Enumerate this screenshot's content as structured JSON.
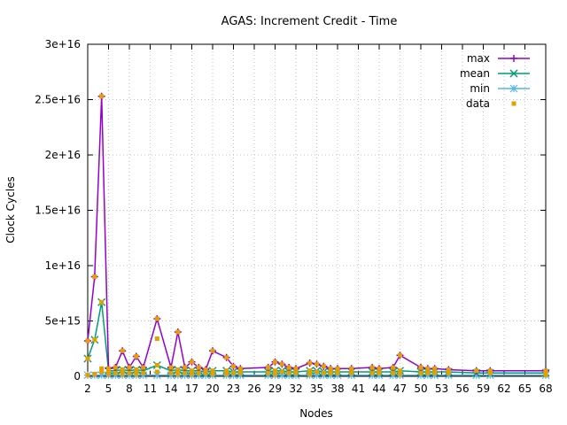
{
  "chart_data": {
    "type": "line",
    "title": "AGAS: Increment Credit - Time",
    "xlabel": "Nodes",
    "ylabel": "Clock Cycles",
    "xlim": [
      2,
      68
    ],
    "ylim": [
      0,
      3e+16
    ],
    "x_ticks": [
      2,
      5,
      8,
      11,
      14,
      17,
      20,
      23,
      26,
      29,
      32,
      35,
      38,
      41,
      44,
      47,
      50,
      53,
      56,
      59,
      62,
      65,
      68
    ],
    "y_ticks": [
      {
        "value": 0,
        "label": "0"
      },
      {
        "value": 5000000000000000.0,
        "label": "5e+15"
      },
      {
        "value": 1e+16,
        "label": "1e+16"
      },
      {
        "value": 1.5e+16,
        "label": "1.5e+16"
      },
      {
        "value": 2e+16,
        "label": "2e+16"
      },
      {
        "value": 2.5e+16,
        "label": "2.5e+16"
      },
      {
        "value": 3e+16,
        "label": "3e+16"
      }
    ],
    "grid": true,
    "legend_position": "top-right",
    "series": [
      {
        "name": "max",
        "color": "#9400d3",
        "marker": "plus",
        "x": [
          2,
          3,
          4,
          5,
          6,
          7,
          8,
          9,
          10,
          12,
          14,
          15,
          16,
          17,
          18,
          19,
          20,
          22,
          23,
          24,
          28,
          29,
          30,
          31,
          32,
          34,
          35,
          36,
          37,
          38,
          40,
          43,
          44,
          46,
          47,
          50,
          51,
          52,
          54,
          58,
          60,
          68
        ],
        "y": [
          3200000000000000.0,
          9000000000000000.0,
          2.53e+16,
          700000000000000.0,
          800000000000000.0,
          2300000000000000.0,
          800000000000000.0,
          1800000000000000.0,
          800000000000000.0,
          5200000000000000.0,
          800000000000000.0,
          4000000000000000.0,
          800000000000000.0,
          1300000000000000.0,
          800000000000000.0,
          600000000000000.0,
          2300000000000000.0,
          1700000000000000.0,
          900000000000000.0,
          700000000000000.0,
          800000000000000.0,
          1300000000000000.0,
          1100000000000000.0,
          800000000000000.0,
          700000000000000.0,
          1200000000000000.0,
          1100000000000000.0,
          900000000000000.0,
          700000000000000.0,
          700000000000000.0,
          700000000000000.0,
          800000000000000.0,
          700000000000000.0,
          800000000000000.0,
          1900000000000000.0,
          800000000000000.0,
          700000000000000.0,
          700000000000000.0,
          600000000000000.0,
          500000000000000.0,
          500000000000000.0,
          500000000000000.0
        ]
      },
      {
        "name": "mean",
        "color": "#009e73",
        "marker": "cross",
        "x": [
          2,
          3,
          4,
          5,
          6,
          7,
          8,
          9,
          10,
          12,
          14,
          15,
          16,
          17,
          18,
          19,
          20,
          22,
          23,
          24,
          28,
          29,
          30,
          31,
          32,
          34,
          35,
          36,
          37,
          38,
          40,
          43,
          44,
          46,
          47,
          50,
          51,
          52,
          54,
          58,
          60,
          68
        ],
        "y": [
          1600000000000000.0,
          3300000000000000.0,
          6700000000000000.0,
          500000000000000.0,
          500000000000000.0,
          600000000000000.0,
          500000000000000.0,
          600000000000000.0,
          500000000000000.0,
          1000000000000000.0,
          500000000000000.0,
          600000000000000.0,
          500000000000000.0,
          500000000000000.0,
          500000000000000.0,
          400000000000000.0,
          500000000000000.0,
          500000000000000.0,
          400000000000000.0,
          400000000000000.0,
          400000000000000.0,
          500000000000000.0,
          500000000000000.0,
          400000000000000.0,
          400000000000000.0,
          500000000000000.0,
          500000000000000.0,
          400000000000000.0,
          400000000000000.0,
          400000000000000.0,
          400000000000000.0,
          400000000000000.0,
          400000000000000.0,
          400000000000000.0,
          500000000000000.0,
          400000000000000.0,
          400000000000000.0,
          400000000000000.0,
          400000000000000.0,
          300000000000000.0,
          300000000000000.0,
          300000000000000.0
        ]
      },
      {
        "name": "min",
        "color": "#56b4e9",
        "marker": "star",
        "x": [
          2,
          3,
          4,
          5,
          6,
          7,
          8,
          9,
          10,
          12,
          14,
          15,
          16,
          17,
          18,
          19,
          20,
          22,
          23,
          24,
          28,
          29,
          30,
          31,
          32,
          34,
          35,
          36,
          37,
          38,
          40,
          43,
          44,
          46,
          47,
          50,
          51,
          52,
          54,
          58,
          60,
          68
        ],
        "y": [
          100000000000000.0,
          100000000000000.0,
          100000000000000.0,
          100000000000000.0,
          100000000000000.0,
          100000000000000.0,
          100000000000000.0,
          100000000000000.0,
          100000000000000.0,
          100000000000000.0,
          100000000000000.0,
          100000000000000.0,
          100000000000000.0,
          100000000000000.0,
          100000000000000.0,
          100000000000000.0,
          100000000000000.0,
          100000000000000.0,
          100000000000000.0,
          100000000000000.0,
          100000000000000.0,
          100000000000000.0,
          100000000000000.0,
          100000000000000.0,
          100000000000000.0,
          100000000000000.0,
          100000000000000.0,
          100000000000000.0,
          100000000000000.0,
          100000000000000.0,
          100000000000000.0,
          100000000000000.0,
          100000000000000.0,
          100000000000000.0,
          100000000000000.0,
          100000000000000.0,
          100000000000000.0,
          100000000000000.0,
          100000000000000.0,
          100000000000000.0,
          100000000000000.0,
          100000000000000.0
        ]
      },
      {
        "name": "data",
        "color": "#e69f00",
        "marker": "square",
        "points": [
          [
            2,
            3200000000000000.0
          ],
          [
            2,
            1600000000000000.0
          ],
          [
            2,
            100000000000000.0
          ],
          [
            3,
            9000000000000000.0
          ],
          [
            3,
            3300000000000000.0
          ],
          [
            3,
            200000000000000.0
          ],
          [
            4,
            2.53e+16
          ],
          [
            4,
            6700000000000000.0
          ],
          [
            4,
            700000000000000.0
          ],
          [
            4,
            400000000000000.0
          ],
          [
            5,
            700000000000000.0
          ],
          [
            5,
            400000000000000.0
          ],
          [
            5,
            200000000000000.0
          ],
          [
            6,
            800000000000000.0
          ],
          [
            6,
            300000000000000.0
          ],
          [
            7,
            2300000000000000.0
          ],
          [
            7,
            600000000000000.0
          ],
          [
            7,
            200000000000000.0
          ],
          [
            8,
            800000000000000.0
          ],
          [
            8,
            300000000000000.0
          ],
          [
            9,
            1800000000000000.0
          ],
          [
            9,
            600000000000000.0
          ],
          [
            9,
            200000000000000.0
          ],
          [
            10,
            800000000000000.0
          ],
          [
            10,
            300000000000000.0
          ],
          [
            12,
            5200000000000000.0
          ],
          [
            12,
            3400000000000000.0
          ],
          [
            12,
            1000000000000000.0
          ],
          [
            12,
            400000000000000.0
          ],
          [
            14,
            800000000000000.0
          ],
          [
            14,
            300000000000000.0
          ],
          [
            15,
            4000000000000000.0
          ],
          [
            15,
            600000000000000.0
          ],
          [
            15,
            200000000000000.0
          ],
          [
            16,
            800000000000000.0
          ],
          [
            16,
            300000000000000.0
          ],
          [
            17,
            1300000000000000.0
          ],
          [
            17,
            500000000000000.0
          ],
          [
            17,
            200000000000000.0
          ],
          [
            18,
            800000000000000.0
          ],
          [
            18,
            300000000000000.0
          ],
          [
            19,
            600000000000000.0
          ],
          [
            19,
            300000000000000.0
          ],
          [
            20,
            2300000000000000.0
          ],
          [
            20,
            500000000000000.0
          ],
          [
            20,
            200000000000000.0
          ],
          [
            22,
            1700000000000000.0
          ],
          [
            22,
            500000000000000.0
          ],
          [
            22,
            200000000000000.0
          ],
          [
            23,
            900000000000000.0
          ],
          [
            23,
            300000000000000.0
          ],
          [
            24,
            700000000000000.0
          ],
          [
            24,
            300000000000000.0
          ],
          [
            28,
            800000000000000.0
          ],
          [
            28,
            300000000000000.0
          ],
          [
            29,
            1300000000000000.0
          ],
          [
            29,
            500000000000000.0
          ],
          [
            29,
            200000000000000.0
          ],
          [
            30,
            1100000000000000.0
          ],
          [
            30,
            400000000000000.0
          ],
          [
            31,
            800000000000000.0
          ],
          [
            31,
            300000000000000.0
          ],
          [
            32,
            700000000000000.0
          ],
          [
            32,
            300000000000000.0
          ],
          [
            34,
            1200000000000000.0
          ],
          [
            34,
            500000000000000.0
          ],
          [
            34,
            200000000000000.0
          ],
          [
            35,
            1100000000000000.0
          ],
          [
            35,
            400000000000000.0
          ],
          [
            36,
            900000000000000.0
          ],
          [
            36,
            300000000000000.0
          ],
          [
            37,
            700000000000000.0
          ],
          [
            37,
            300000000000000.0
          ],
          [
            38,
            700000000000000.0
          ],
          [
            38,
            300000000000000.0
          ],
          [
            40,
            700000000000000.0
          ],
          [
            40,
            300000000000000.0
          ],
          [
            43,
            800000000000000.0
          ],
          [
            43,
            300000000000000.0
          ],
          [
            44,
            700000000000000.0
          ],
          [
            44,
            300000000000000.0
          ],
          [
            46,
            800000000000000.0
          ],
          [
            46,
            300000000000000.0
          ],
          [
            47,
            1900000000000000.0
          ],
          [
            47,
            500000000000000.0
          ],
          [
            47,
            200000000000000.0
          ],
          [
            50,
            800000000000000.0
          ],
          [
            50,
            300000000000000.0
          ],
          [
            51,
            700000000000000.0
          ],
          [
            51,
            300000000000000.0
          ],
          [
            52,
            700000000000000.0
          ],
          [
            52,
            300000000000000.0
          ],
          [
            54,
            600000000000000.0
          ],
          [
            54,
            300000000000000.0
          ],
          [
            58,
            500000000000000.0
          ],
          [
            60,
            500000000000000.0
          ],
          [
            60,
            300000000000000.0
          ],
          [
            68,
            500000000000000.0
          ],
          [
            68,
            300000000000000.0
          ],
          [
            68,
            100000000000000.0
          ]
        ]
      }
    ]
  }
}
